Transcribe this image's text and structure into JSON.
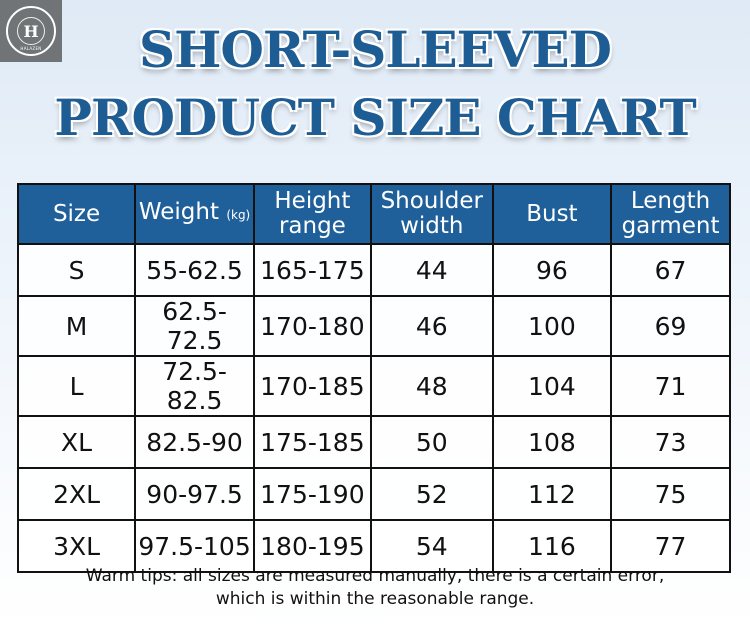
{
  "logo": {
    "letter": "H",
    "text": "HALAZEN"
  },
  "title": {
    "line1": "SHORT-SLEEVED",
    "line2": "PRODUCT SIZE CHART"
  },
  "table": {
    "headers": [
      {
        "main": "Size",
        "unit": ""
      },
      {
        "main": "Weight",
        "unit": "(kg)"
      },
      {
        "main": "Height range",
        "unit": ""
      },
      {
        "main": "Shoulder width",
        "unit": ""
      },
      {
        "main": "Bust",
        "unit": ""
      },
      {
        "main": "Length garment",
        "unit": ""
      }
    ],
    "rows": [
      [
        "S",
        "55-62.5",
        "165-175",
        "44",
        "96",
        "67"
      ],
      [
        "M",
        "62.5-72.5",
        "170-180",
        "46",
        "100",
        "69"
      ],
      [
        "L",
        "72.5-82.5",
        "170-185",
        "48",
        "104",
        "71"
      ],
      [
        "XL",
        "82.5-90",
        "175-185",
        "50",
        "108",
        "73"
      ],
      [
        "2XL",
        "90-97.5",
        "175-190",
        "52",
        "112",
        "75"
      ],
      [
        "3XL",
        "97.5-105",
        "180-195",
        "54",
        "116",
        "77"
      ]
    ]
  },
  "tips": {
    "line1": "Warm tips: all sizes are measured manually, there is a certain error,",
    "line2": "which is within the reasonable range."
  },
  "colors": {
    "header_bg": "#1f5f9a",
    "title": "#1e5c94"
  }
}
